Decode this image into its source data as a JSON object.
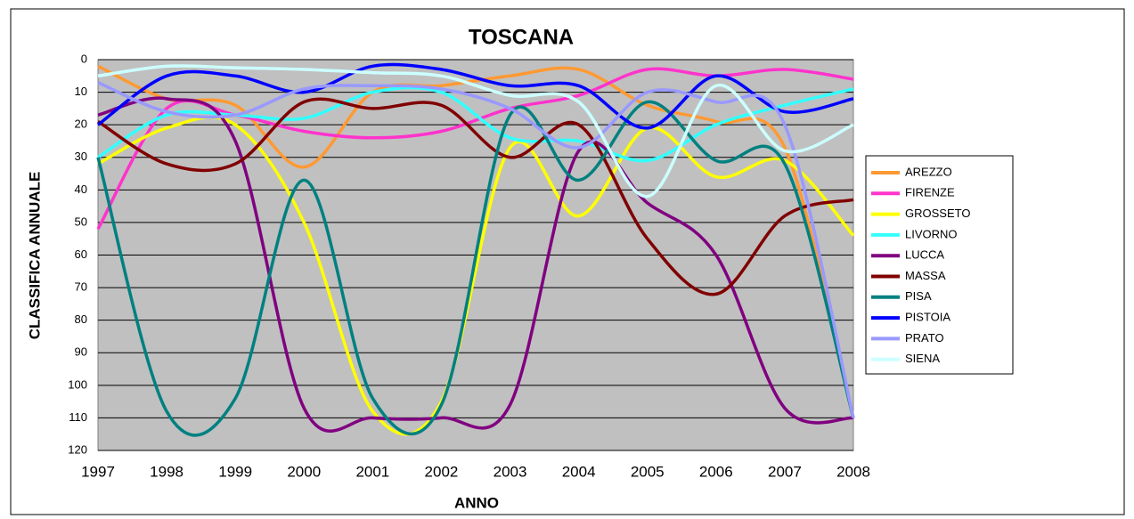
{
  "chart_data": {
    "type": "line",
    "title": "TOSCANA",
    "x_label": "ANNO",
    "y_label": "CLASSIFICA ANNUALE",
    "categories": [
      "1997",
      "1998",
      "1999",
      "2000",
      "2001",
      "2002",
      "2003",
      "2004",
      "2005",
      "2006",
      "2007",
      "2008"
    ],
    "ylim": [
      0,
      120
    ],
    "yticks": [
      0,
      10,
      20,
      30,
      40,
      50,
      60,
      70,
      80,
      90,
      100,
      110,
      120
    ],
    "y_reversed": true,
    "grid": true,
    "smooth": true,
    "legend": "right",
    "series": [
      {
        "name": "AREZZO",
        "color": "#ff9933",
        "values": [
          2,
          12,
          14,
          33,
          10,
          8,
          5,
          3,
          14,
          19,
          27,
          110
        ]
      },
      {
        "name": "FIRENZE",
        "color": "#ff33cc",
        "values": [
          52,
          15,
          17,
          22,
          24,
          22,
          15,
          11,
          3,
          5,
          3,
          6
        ]
      },
      {
        "name": "GROSSETO",
        "color": "#ffff00",
        "values": [
          32,
          21,
          20,
          50,
          108,
          105,
          27,
          48,
          21,
          36,
          31,
          54
        ]
      },
      {
        "name": "LIVORNO",
        "color": "#33ffff",
        "values": [
          30,
          17,
          17,
          18,
          10,
          10,
          24,
          25,
          31,
          20,
          14,
          9
        ]
      },
      {
        "name": "LUCCA",
        "color": "#800080",
        "values": [
          17,
          12,
          25,
          107,
          110,
          110,
          106,
          28,
          44,
          60,
          107,
          110
        ]
      },
      {
        "name": "MASSA",
        "color": "#800000",
        "values": [
          19,
          32,
          32,
          13,
          15,
          14,
          30,
          20,
          55,
          72,
          48,
          43
        ]
      },
      {
        "name": "PISA",
        "color": "#008080",
        "values": [
          30,
          108,
          104,
          37,
          104,
          106,
          17,
          37,
          13,
          31,
          32,
          110
        ]
      },
      {
        "name": "PISTOIA",
        "color": "#0000ff",
        "values": [
          20,
          5,
          5,
          10,
          2,
          3,
          8,
          8,
          21,
          5,
          16,
          12
        ]
      },
      {
        "name": "PRATO",
        "color": "#9999ff",
        "values": [
          7,
          16,
          17,
          9,
          8,
          9,
          15,
          27,
          10,
          13,
          20,
          110
        ]
      },
      {
        "name": "SIENA",
        "color": "#ccffff",
        "values": [
          5,
          2,
          2.5,
          3,
          4,
          5,
          11,
          13,
          42,
          8,
          28,
          20
        ]
      }
    ]
  }
}
